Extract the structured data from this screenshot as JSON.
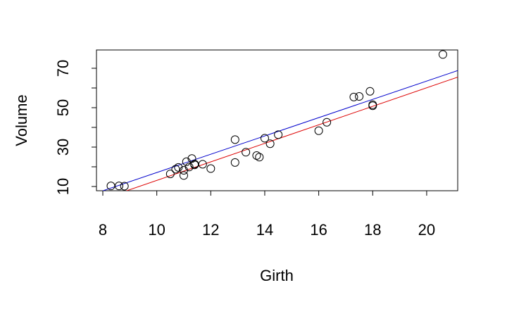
{
  "chart_data": {
    "type": "scatter",
    "x_label": "Girth",
    "y_label": "Volume",
    "x": [
      8.3,
      8.6,
      8.8,
      10.5,
      10.7,
      10.8,
      11.0,
      11.0,
      11.1,
      11.2,
      11.3,
      11.4,
      11.4,
      11.7,
      12.0,
      12.9,
      12.9,
      13.3,
      13.7,
      13.8,
      14.0,
      14.2,
      14.5,
      16.0,
      16.3,
      17.3,
      17.5,
      17.9,
      18.0,
      18.0,
      20.6
    ],
    "values": [
      10.3,
      10.3,
      10.2,
      16.4,
      18.8,
      19.7,
      15.6,
      18.2,
      22.6,
      19.9,
      24.2,
      21.0,
      21.4,
      21.3,
      19.1,
      22.2,
      33.8,
      27.4,
      25.7,
      24.9,
      34.5,
      31.7,
      36.3,
      38.3,
      42.6,
      55.4,
      55.7,
      58.3,
      51.5,
      51.0,
      77.0
    ],
    "color": "#000000",
    "lines": [
      {
        "color": "#0000cc",
        "intercept": -29.3,
        "slope": 4.64
      },
      {
        "color": "#dd0000",
        "intercept": -33.9,
        "slope": 4.7
      }
    ],
    "xlim": [
      7.765,
      21.15
    ],
    "ylim": [
      7.86,
      79.29
    ],
    "xticks": [
      8,
      10,
      12,
      14,
      16,
      18,
      20
    ],
    "yticks": [
      10,
      20,
      30,
      40,
      50,
      60,
      70
    ]
  }
}
